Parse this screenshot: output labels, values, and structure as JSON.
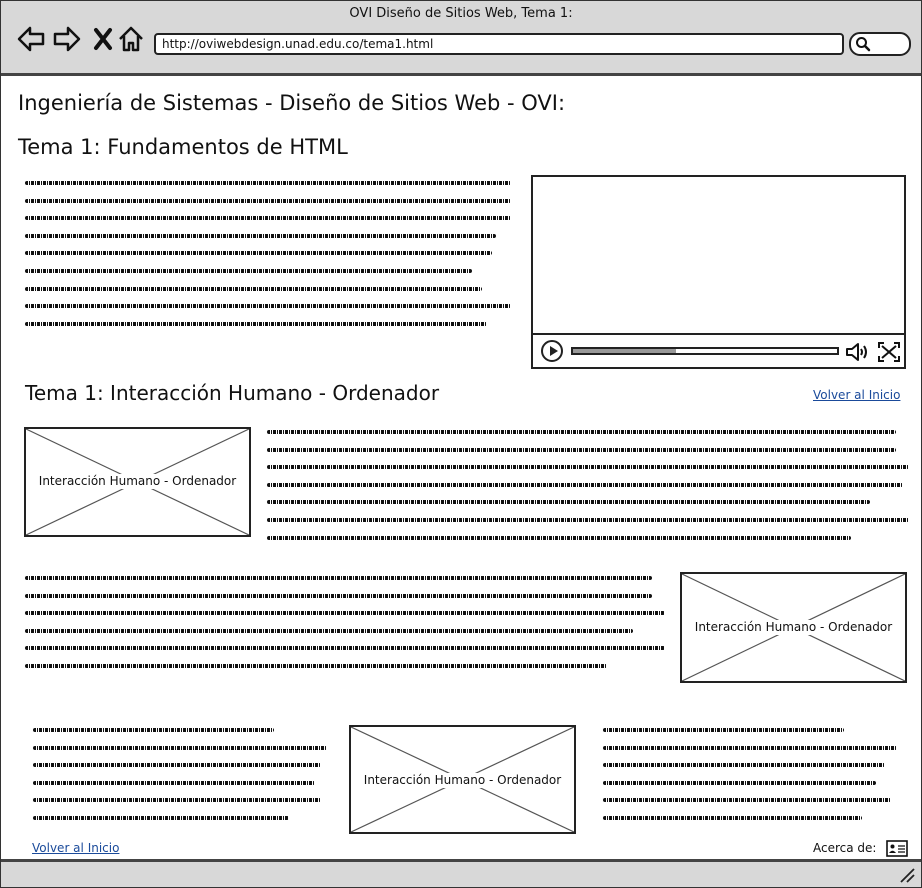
{
  "window": {
    "title": "OVI Diseño de Sitios Web, Tema 1:"
  },
  "toolbar": {
    "url": "http://oviwebdesign.unad.edu.co/tema1.html",
    "icons": [
      "back-arrow-icon",
      "forward-arrow-icon",
      "close-x-icon",
      "home-icon",
      "search-icon"
    ]
  },
  "page": {
    "heading": "Ingeniería de Sistemas - Diseño de Sitios Web - OVI:",
    "section1_title": "Tema 1: Fundamentos de HTML",
    "section2_title": "Tema 1: Interacción Humano - Ordenador",
    "back_link_top": "Volver al Inicio",
    "back_link_bottom": "Volver al Inicio",
    "image_label": "Interacción Humano - Ordenador",
    "about_label": "Acerca de:"
  },
  "video": {
    "progress": 0.39
  },
  "colors": {
    "chrome": "#d8d8d8",
    "link": "#1a4a9a",
    "stroke": "#222222"
  }
}
